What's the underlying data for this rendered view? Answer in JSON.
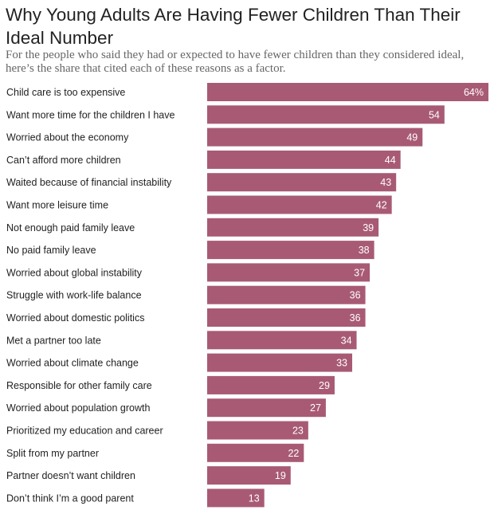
{
  "header": {
    "title": "Why Young Adults Are Having Fewer Children Than Their Ideal Number",
    "subtitle": "For the people who said they had or expected to have fewer children than they considered ideal, here’s the share that cited each of these reasons as a factor."
  },
  "colors": {
    "bar": "#a85a74",
    "label": "#222222",
    "value_text": "#ffffff"
  },
  "chart_data": {
    "type": "bar",
    "orientation": "horizontal",
    "title": "Why Young Adults Are Having Fewer Children Than Their Ideal Number",
    "subtitle": "For the people who said they had or expected to have fewer children than they considered ideal, here’s the share that cited each of these reasons as a factor.",
    "categories": [
      "Child care is too expensive",
      "Want more time for the children I have",
      "Worried about the economy",
      "Can’t afford more children",
      "Waited because of financial instability",
      "Want more leisure time",
      "Not enough paid family leave",
      "No paid family leave",
      "Worried about global instability",
      "Struggle with work-life balance",
      "Worried about domestic politics",
      "Met a partner too late",
      "Worried about climate change",
      "Responsible for other family care",
      "Worried about population growth",
      "Prioritized my education and career",
      "Split from my partner",
      "Partner doesn’t want children",
      "Don’t think I’m a good parent"
    ],
    "values": [
      64,
      54,
      49,
      44,
      43,
      42,
      39,
      38,
      37,
      36,
      36,
      34,
      33,
      29,
      27,
      23,
      22,
      19,
      13
    ],
    "value_labels": [
      "64%",
      "54",
      "49",
      "44",
      "43",
      "42",
      "39",
      "38",
      "37",
      "36",
      "36",
      "34",
      "33",
      "29",
      "27",
      "23",
      "22",
      "19",
      "13"
    ],
    "xlim": [
      0,
      64
    ],
    "grid": false,
    "legend": "none"
  }
}
